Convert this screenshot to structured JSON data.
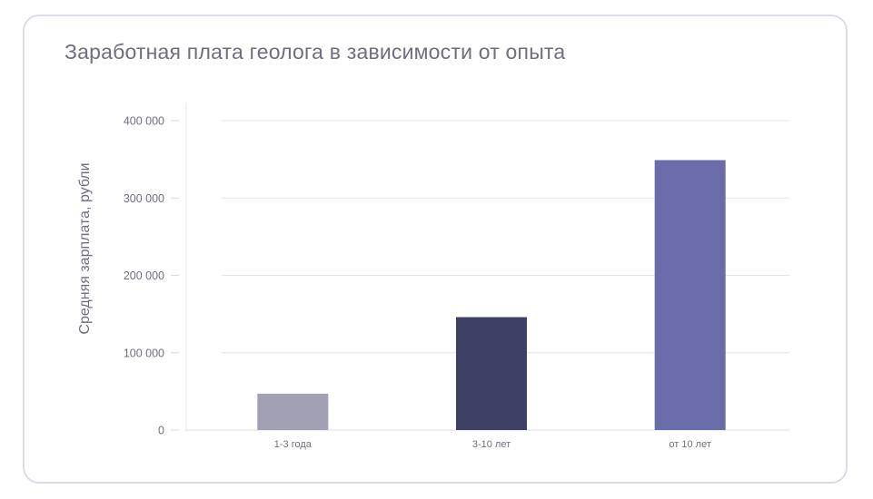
{
  "chart_data": {
    "type": "bar",
    "title": "Заработная плата геолога в зависимости от опыта",
    "xlabel": "",
    "ylabel": "Средняя зарплата, рубли",
    "categories": [
      "1-3 года",
      "3-10 лет",
      "от 10 лет"
    ],
    "values": [
      47000,
      146000,
      349000
    ],
    "colors": [
      "#a1a0b4",
      "#3e4066",
      "#6a6ca9"
    ],
    "ylim": [
      0,
      400000
    ],
    "yticks": [
      0,
      100000,
      200000,
      300000,
      400000
    ],
    "ytick_labels": [
      "0",
      "100 000",
      "200 000",
      "300 000",
      "400 000"
    ],
    "grid": true,
    "legend": "none"
  }
}
